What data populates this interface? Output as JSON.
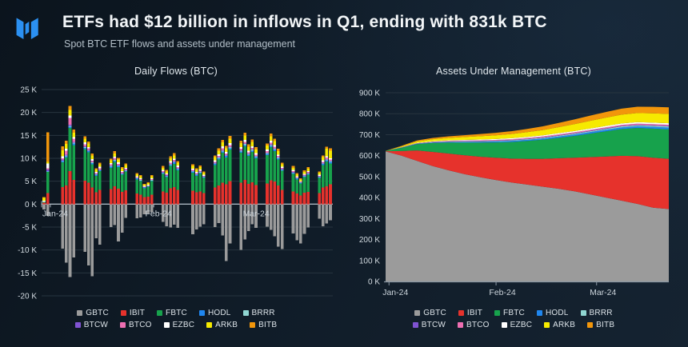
{
  "header": {
    "title": "ETFs had $12 billion in inflows in Q1, ending with 831k BTC",
    "subtitle": "Spot BTC ETF flows and assets under management",
    "logo_color": "#2b90f2"
  },
  "legend": [
    {
      "label": "GBTC",
      "color": "#9b9b9b"
    },
    {
      "label": "IBIT",
      "color": "#e6322c"
    },
    {
      "label": "FBTC",
      "color": "#17a24c"
    },
    {
      "label": "HODL",
      "color": "#1f86ef"
    },
    {
      "label": "BRRR",
      "color": "#90d6d2"
    },
    {
      "label": "BTCW",
      "color": "#8053d2"
    },
    {
      "label": "BTCO",
      "color": "#ee6fb2"
    },
    {
      "label": "EZBC",
      "color": "#ffffff"
    },
    {
      "label": "ARKB",
      "color": "#f6ea00"
    },
    {
      "label": "BITB",
      "color": "#f2960b"
    }
  ],
  "chart_data": [
    {
      "type": "bar",
      "title": "Daily Flows (BTC)",
      "stacked": true,
      "unit": "K BTC",
      "ylim": [
        -20,
        25
      ],
      "y_ticks": [
        25,
        20,
        15,
        10,
        5,
        0,
        -5,
        -10,
        -15,
        -20
      ],
      "grid": true,
      "x_ticks": [
        {
          "label": "Jan-24",
          "f": 0.03
        },
        {
          "label": "Feb-24",
          "f": 0.385
        },
        {
          "label": "Mar-24",
          "f": 0.72
        }
      ],
      "day_span": 77,
      "columns": [
        "offset",
        "GBTC",
        "IBIT",
        "FBTC",
        "HODL",
        "BRRR",
        "BTCW",
        "BTCO",
        "EZBC",
        "ARKB",
        "BITB"
      ],
      "days": [
        [
          0,
          -1.2,
          0.3,
          0.2,
          0,
          0,
          0,
          0,
          0.25,
          0.6,
          0.15
        ],
        [
          1,
          -2.6,
          2.4,
          4.6,
          0.15,
          0.1,
          0.3,
          0.25,
          1.1,
          0.35,
          6.4
        ],
        [
          5,
          -9.7,
          3.7,
          5.4,
          0.25,
          0.15,
          0.2,
          0.3,
          0.45,
          1.3,
          0.9
        ],
        [
          6,
          -12.8,
          4.1,
          6.1,
          0.25,
          0.15,
          0.2,
          0.9,
          0.4,
          1.0,
          0.7
        ],
        [
          7,
          -15.9,
          7.2,
          9.4,
          0.3,
          0.2,
          0.25,
          1.5,
          0.5,
          1.2,
          0.85
        ],
        [
          8,
          -11.6,
          5.3,
          7.6,
          0.3,
          0.2,
          0.2,
          0.7,
          0.35,
          0.9,
          0.75
        ],
        [
          11,
          -10.4,
          5.1,
          6.9,
          0.3,
          0.15,
          0.15,
          0.45,
          0.4,
          0.8,
          0.55
        ],
        [
          12,
          -13.4,
          4.7,
          6.6,
          0.25,
          0.15,
          0.1,
          0.35,
          0.3,
          0.75,
          0.45
        ],
        [
          13,
          -15.7,
          3.6,
          5.1,
          0.25,
          0.15,
          0.1,
          0.3,
          0.3,
          0.8,
          0.45
        ],
        [
          14,
          -7.4,
          2.6,
          3.6,
          0.2,
          0.1,
          0.1,
          0.2,
          0.25,
          0.5,
          0.3
        ],
        [
          15,
          -8.8,
          3.1,
          4.1,
          0.2,
          0.1,
          0.1,
          0.25,
          0.3,
          0.55,
          0.35
        ],
        [
          18,
          -5.0,
          3.3,
          4.6,
          0.25,
          0.15,
          0.1,
          0.25,
          0.3,
          0.6,
          0.4
        ],
        [
          19,
          -4.6,
          3.9,
          5.3,
          0.3,
          0.15,
          0.1,
          0.3,
          0.3,
          0.7,
          0.5
        ],
        [
          20,
          -8.1,
          3.4,
          4.7,
          0.25,
          0.1,
          0.1,
          0.25,
          0.3,
          0.6,
          0.4
        ],
        [
          21,
          -6.2,
          2.7,
          3.7,
          0.2,
          0.1,
          0.1,
          0.2,
          0.25,
          0.5,
          0.35
        ],
        [
          22,
          -3.0,
          3.0,
          4.1,
          0.2,
          0.1,
          0.1,
          0.2,
          0.25,
          0.55,
          0.35
        ],
        [
          25,
          -3.1,
          2.3,
          3.1,
          0.2,
          0.1,
          0.05,
          0.15,
          0.2,
          0.4,
          0.3
        ],
        [
          26,
          -2.9,
          2.1,
          2.9,
          0.15,
          0.1,
          0.05,
          0.15,
          0.2,
          0.4,
          0.25
        ],
        [
          27,
          -2.2,
          1.5,
          2.0,
          0.1,
          0.05,
          0.05,
          0.1,
          0.15,
          0.3,
          0.2
        ],
        [
          28,
          -2.0,
          1.6,
          2.2,
          0.1,
          0.05,
          0.05,
          0.1,
          0.15,
          0.3,
          0.2
        ],
        [
          29,
          -1.8,
          2.1,
          2.9,
          0.15,
          0.1,
          0.05,
          0.15,
          0.2,
          0.4,
          0.3
        ],
        [
          32,
          -3.9,
          2.8,
          3.8,
          0.2,
          0.1,
          0.1,
          0.2,
          0.25,
          0.5,
          0.35
        ],
        [
          33,
          -4.8,
          2.5,
          3.4,
          0.2,
          0.1,
          0.1,
          0.2,
          0.2,
          0.45,
          0.3
        ],
        [
          34,
          -5.1,
          3.5,
          4.8,
          0.25,
          0.15,
          0.1,
          0.25,
          0.3,
          0.65,
          0.4
        ],
        [
          35,
          -4.5,
          3.7,
          5.1,
          0.3,
          0.15,
          0.1,
          0.3,
          0.3,
          0.7,
          0.45
        ],
        [
          36,
          -5.2,
          3.1,
          4.3,
          0.25,
          0.1,
          0.1,
          0.25,
          0.3,
          0.6,
          0.4
        ],
        [
          40,
          -6.6,
          2.9,
          4.0,
          0.2,
          0.1,
          0.1,
          0.2,
          0.25,
          0.55,
          0.35
        ],
        [
          41,
          -5.5,
          2.6,
          3.6,
          0.2,
          0.1,
          0.1,
          0.2,
          0.25,
          0.5,
          0.3
        ],
        [
          42,
          -4.9,
          2.8,
          3.9,
          0.2,
          0.1,
          0.1,
          0.2,
          0.25,
          0.5,
          0.35
        ],
        [
          43,
          -4.4,
          2.4,
          3.3,
          0.2,
          0.1,
          0.05,
          0.15,
          0.2,
          0.45,
          0.3
        ],
        [
          46,
          -5.0,
          3.6,
          4.9,
          0.25,
          0.15,
          0.1,
          0.25,
          0.3,
          0.7,
          0.4
        ],
        [
          47,
          -4.1,
          4.1,
          5.6,
          0.3,
          0.15,
          0.1,
          0.3,
          0.35,
          0.8,
          0.5
        ],
        [
          48,
          -6.8,
          4.7,
          6.5,
          0.3,
          0.2,
          0.15,
          0.35,
          0.4,
          0.9,
          0.55
        ],
        [
          49,
          -12.4,
          4.3,
          5.9,
          0.3,
          0.15,
          0.1,
          0.3,
          0.35,
          0.8,
          0.5
        ],
        [
          50,
          -8.6,
          5.0,
          6.9,
          0.3,
          0.2,
          0.15,
          0.35,
          0.4,
          0.95,
          0.6
        ],
        [
          53,
          -10.0,
          4.7,
          6.5,
          0.3,
          0.2,
          0.1,
          0.3,
          0.35,
          0.85,
          0.55
        ],
        [
          54,
          -7.7,
          5.3,
          7.3,
          0.3,
          0.2,
          0.15,
          0.35,
          0.4,
          1.0,
          0.6
        ],
        [
          55,
          -5.9,
          4.4,
          6.1,
          0.3,
          0.15,
          0.1,
          0.3,
          0.35,
          0.85,
          0.5
        ],
        [
          56,
          -4.4,
          4.8,
          6.6,
          0.3,
          0.2,
          0.1,
          0.3,
          0.35,
          0.9,
          0.55
        ],
        [
          57,
          -5.2,
          4.2,
          5.8,
          0.3,
          0.15,
          0.1,
          0.25,
          0.3,
          0.8,
          0.5
        ],
        [
          60,
          -4.9,
          4.5,
          6.2,
          0.3,
          0.15,
          0.1,
          0.3,
          0.35,
          0.85,
          0.5
        ],
        [
          61,
          -5.6,
          5.2,
          7.2,
          0.3,
          0.2,
          0.15,
          0.35,
          0.4,
          1.0,
          0.6
        ],
        [
          62,
          -7.0,
          4.9,
          6.7,
          0.3,
          0.2,
          0.1,
          0.3,
          0.35,
          0.9,
          0.55
        ],
        [
          63,
          -9.3,
          4.1,
          5.6,
          0.3,
          0.15,
          0.1,
          0.25,
          0.3,
          0.8,
          0.45
        ],
        [
          64,
          -9.8,
          3.1,
          4.2,
          0.2,
          0.1,
          0.1,
          0.2,
          0.25,
          0.55,
          0.35
        ],
        [
          67,
          -6.4,
          2.8,
          3.8,
          0.2,
          0.1,
          0.1,
          0.2,
          0.25,
          0.5,
          0.35
        ],
        [
          68,
          -7.9,
          2.3,
          3.1,
          0.2,
          0.1,
          0.05,
          0.15,
          0.2,
          0.4,
          0.25
        ],
        [
          69,
          -8.6,
          1.9,
          2.6,
          0.15,
          0.1,
          0.05,
          0.1,
          0.15,
          0.35,
          0.2
        ],
        [
          70,
          -6.5,
          2.5,
          3.4,
          0.2,
          0.1,
          0.05,
          0.15,
          0.2,
          0.45,
          0.3
        ],
        [
          71,
          -5.1,
          2.7,
          3.7,
          0.2,
          0.1,
          0.1,
          0.2,
          0.25,
          0.5,
          0.3
        ],
        [
          74,
          -3.2,
          2.4,
          3.3,
          0.2,
          0.1,
          0.05,
          0.15,
          0.2,
          0.45,
          0.3
        ],
        [
          75,
          -4.8,
          3.6,
          4.9,
          0.25,
          0.15,
          0.1,
          0.25,
          0.3,
          0.7,
          0.4
        ],
        [
          76,
          -4.2,
          3.9,
          5.4,
          0.3,
          0.15,
          0.1,
          0.3,
          0.3,
          1.6,
          0.45
        ],
        [
          77,
          -3.5,
          4.3,
          4.6,
          0.3,
          0.15,
          0.1,
          0.25,
          0.3,
          1.7,
          0.45
        ]
      ]
    },
    {
      "type": "area",
      "title": "Assets Under Management (BTC)",
      "stacked": true,
      "unit": "K BTC",
      "ylim": [
        0,
        900
      ],
      "y_ticks": [
        900,
        800,
        700,
        600,
        500,
        400,
        300,
        200,
        100,
        0
      ],
      "grid": true,
      "x_ticks": [
        {
          "label": "Jan-24",
          "f": 0.012
        },
        {
          "label": "Feb-24",
          "f": 0.39
        },
        {
          "label": "Mar-24",
          "f": 0.745
        }
      ],
      "series": [
        {
          "name": "GBTC",
          "values": [
            620,
            600,
            575,
            550,
            530,
            512,
            497,
            484,
            472,
            462,
            452,
            442,
            430,
            415,
            400,
            385,
            370,
            352,
            345
          ]
        },
        {
          "name": "IBIT",
          "values": [
            1,
            22,
            50,
            68,
            80,
            90,
            98,
            106,
            114,
            123,
            133,
            146,
            160,
            178,
            196,
            214,
            228,
            238,
            240
          ]
        },
        {
          "name": "FBTC",
          "values": [
            1,
            15,
            30,
            42,
            52,
            60,
            67,
            73,
            79,
            85,
            91,
            97,
            104,
            112,
            120,
            128,
            134,
            139,
            140
          ]
        },
        {
          "name": "HODL",
          "values": [
            0,
            0.8,
            1.6,
            2.4,
            3,
            3.5,
            4,
            4.5,
            5,
            5.4,
            5.8,
            6.2,
            6.6,
            7,
            7.4,
            7.8,
            8.2,
            8.6,
            9
          ]
        },
        {
          "name": "BRRR",
          "values": [
            0,
            0.4,
            0.9,
            1.4,
            1.8,
            2.2,
            2.5,
            2.8,
            3.1,
            3.4,
            3.7,
            4,
            4.2,
            4.4,
            4.6,
            4.8,
            5,
            5.2,
            5.4
          ]
        },
        {
          "name": "BTCW",
          "values": [
            0,
            0.2,
            0.4,
            0.6,
            0.8,
            1,
            1.2,
            1.3,
            1.5,
            1.6,
            1.8,
            1.9,
            2,
            2.1,
            2.2,
            2.3,
            2.4,
            2.5,
            2.6
          ]
        },
        {
          "name": "BTCO",
          "values": [
            0,
            0.8,
            1.5,
            2.1,
            2.6,
            3,
            3.3,
            3.6,
            3.9,
            4.1,
            4.3,
            4.5,
            4.7,
            4.8,
            4.9,
            5,
            5.1,
            5.2,
            5.3
          ]
        },
        {
          "name": "EZBC",
          "values": [
            0,
            0.8,
            1.6,
            2.3,
            2.9,
            3.4,
            3.9,
            4.3,
            4.7,
            5,
            5.3,
            5.6,
            5.9,
            6.2,
            6.5,
            6.8,
            7,
            7.1,
            7.2
          ]
        },
        {
          "name": "ARKB",
          "values": [
            0.5,
            4,
            7,
            9.5,
            11.5,
            13.5,
            15.5,
            17.5,
            20,
            22.5,
            25.5,
            29,
            33,
            36.5,
            39.5,
            42,
            43.5,
            44,
            44.5
          ]
        },
        {
          "name": "BITB",
          "values": [
            0.5,
            2.5,
            4.5,
            6,
            7.5,
            9,
            10.5,
            12,
            13.5,
            15.5,
            17.5,
            20,
            22.5,
            25,
            27,
            28.5,
            30,
            31,
            31.5
          ]
        }
      ]
    }
  ]
}
